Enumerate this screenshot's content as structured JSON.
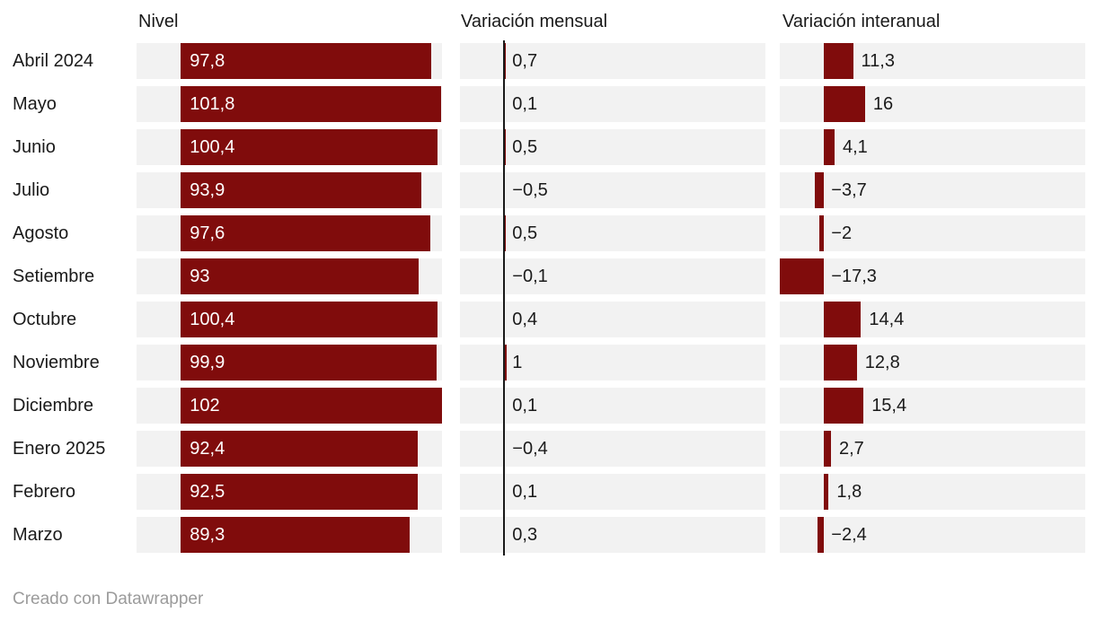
{
  "colors": {
    "bar": "#800C0C",
    "track": "#f2f2f2",
    "axis_line": "#1a1a1a",
    "text": "#1a1a1a",
    "bar_label": "#ffffff",
    "credit": "#9b9b9b"
  },
  "footer": {
    "credit": "Creado con Datawrapper"
  },
  "chart_data": {
    "type": "bar",
    "layout": "split-bars-table",
    "columns": [
      "Nivel",
      "Variación mensual",
      "Variación interanual"
    ],
    "categories": [
      "Abril 2024",
      "Mayo",
      "Junio",
      "Julio",
      "Agosto",
      "Setiembre",
      "Octubre",
      "Noviembre",
      "Diciembre",
      "Enero 2025",
      "Febrero",
      "Marzo"
    ],
    "series": [
      {
        "name": "Nivel",
        "values": [
          97.8,
          101.8,
          100.4,
          93.9,
          97.6,
          93,
          100.4,
          99.9,
          102,
          92.4,
          92.5,
          89.3
        ],
        "labels": [
          "97,8",
          "101,8",
          "100,4",
          "93,9",
          "97,6",
          "93",
          "100,4",
          "99,9",
          "102",
          "92,4",
          "92,5",
          "89,3"
        ]
      },
      {
        "name": "Variación mensual",
        "values": [
          0.7,
          0.1,
          0.5,
          -0.5,
          0.5,
          -0.1,
          0.4,
          1,
          0.1,
          -0.4,
          0.1,
          0.3
        ],
        "labels": [
          "0,7",
          "0,1",
          "0,5",
          "−0,5",
          "0,5",
          "−0,1",
          "0,4",
          "1",
          "0,1",
          "−0,4",
          "0,1",
          "0,3"
        ]
      },
      {
        "name": "Variación interanual",
        "values": [
          11.3,
          16,
          4.1,
          -3.7,
          -2,
          -17.3,
          14.4,
          12.8,
          15.4,
          2.7,
          1.8,
          -2.4
        ],
        "labels": [
          "11,3",
          "16",
          "4,1",
          "−3,7",
          "−2",
          "−17,3",
          "14,4",
          "12,8",
          "15,4",
          "2,7",
          "1,8",
          "−2,4"
        ]
      }
    ],
    "shared_axis_range": [
      -17.3,
      102
    ],
    "grid": false,
    "legend": false
  }
}
